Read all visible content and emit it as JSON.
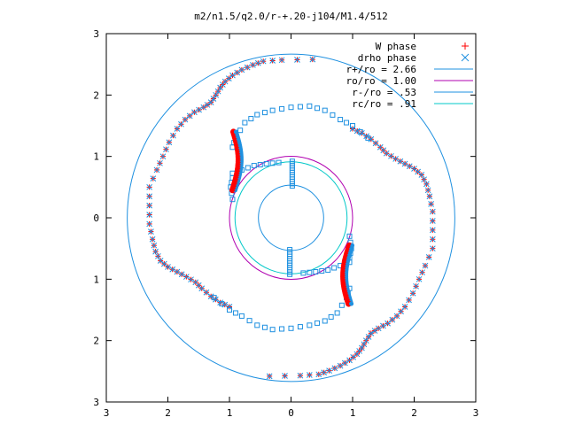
{
  "chart_data": {
    "type": "scatter",
    "title": "m2/n1.5/q2.0/r-+.20-j104/M1.4/512",
    "xlabel": "",
    "ylabel": "",
    "xlim": [
      -3,
      3
    ],
    "ylim": [
      -3,
      3
    ],
    "x_tick_values": [
      -3,
      -2,
      -1,
      0,
      1,
      2,
      3
    ],
    "x_tick_labels": [
      "3",
      "2",
      "1",
      "0",
      "1",
      "2",
      "3"
    ],
    "y_tick_values": [
      3,
      2,
      1,
      0,
      -1,
      -2,
      -3
    ],
    "y_tick_labels": [
      "3",
      "2",
      "1",
      "0",
      "1",
      "2",
      "3"
    ],
    "grid": false,
    "legend_position": "top-right",
    "series": [
      {
        "name": "W phase",
        "kind": "points",
        "marker": "plus",
        "color": "#ff0000"
      },
      {
        "name": "drho phase",
        "kind": "points",
        "marker": "cross",
        "color": "#1e90e0"
      },
      {
        "name": "r+/ro = 2.66",
        "kind": "circle",
        "radius": 2.66,
        "color": "#1e90e0"
      },
      {
        "name": "ro/ro = 1.00",
        "kind": "circle",
        "radius": 1.0,
        "color": "#b000b0"
      },
      {
        "name": "r-/ro = .53",
        "kind": "circle",
        "radius": 0.53,
        "color": "#1e90e0"
      },
      {
        "name": "rc/ro = .91",
        "kind": "circle",
        "radius": 0.91,
        "color": "#00c8c8"
      }
    ],
    "arm_model": {
      "description_free": true,
      "outer_arm_points": [
        [
          0.35,
          2.58
        ],
        [
          -0.15,
          2.57
        ],
        [
          -0.45,
          2.55
        ],
        [
          -0.62,
          2.49
        ],
        [
          -0.8,
          2.41
        ],
        [
          -0.95,
          2.32
        ],
        [
          -1.07,
          2.22
        ],
        [
          -1.15,
          2.12
        ],
        [
          -1.22,
          2.0
        ],
        [
          -1.3,
          1.88
        ],
        [
          -1.42,
          1.8
        ],
        [
          -1.57,
          1.72
        ],
        [
          -1.72,
          1.6
        ],
        [
          -1.85,
          1.45
        ],
        [
          -1.98,
          1.23
        ],
        [
          -2.08,
          1.0
        ],
        [
          -2.18,
          0.78
        ],
        [
          -2.3,
          0.5
        ],
        [
          -2.3,
          0.2
        ],
        [
          -2.3,
          -0.1
        ],
        [
          -2.25,
          -0.35
        ],
        [
          -2.2,
          -0.55
        ],
        [
          -2.12,
          -0.7
        ],
        [
          -2.0,
          -0.8
        ],
        [
          -1.85,
          -0.88
        ],
        [
          -1.7,
          -0.96
        ],
        [
          -1.55,
          -1.05
        ],
        [
          -1.45,
          -1.15
        ],
        [
          -1.3,
          -1.28
        ],
        [
          -1.15,
          -1.38
        ],
        [
          -1.0,
          -1.45
        ]
      ],
      "inner_arm_points": [
        [
          -0.2,
          0.9
        ],
        [
          -0.4,
          0.88
        ],
        [
          -0.6,
          0.85
        ],
        [
          -0.8,
          0.78
        ],
        [
          -0.95,
          0.65
        ],
        [
          -0.98,
          0.5
        ],
        [
          -0.95,
          0.3
        ],
        [
          -0.95,
          1.15
        ],
        [
          -0.9,
          1.3
        ],
        [
          -0.75,
          1.55
        ],
        [
          -0.55,
          1.68
        ],
        [
          -0.3,
          1.75
        ],
        [
          0.0,
          1.8
        ],
        [
          0.3,
          1.82
        ],
        [
          0.55,
          1.75
        ],
        [
          0.8,
          1.6
        ],
        [
          1.0,
          1.5
        ],
        [
          1.25,
          1.3
        ]
      ]
    }
  }
}
